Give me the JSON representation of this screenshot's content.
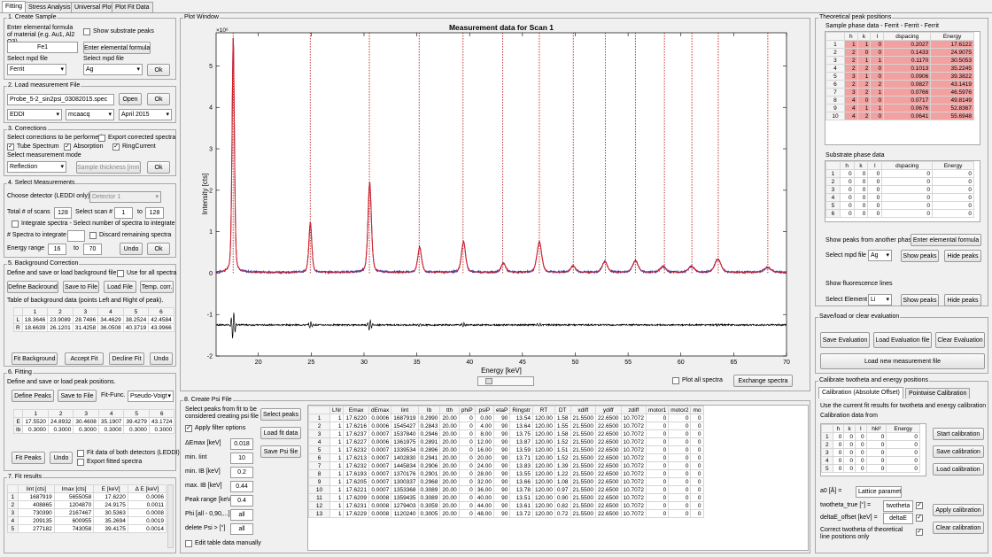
{
  "tabs": [
    "Fitting",
    "Stress Analysis",
    "Universal Plot",
    "Plot Fit Data"
  ],
  "create_sample": {
    "title": "1. Create Sample",
    "desc": "Enter elemental formula of material (e.g. Au1, Al2 O3).",
    "formula": "Fe1",
    "show_substrate": "Show substrate peaks",
    "enter_formula_btn": "Enter elemental formula",
    "mpd_label": "Select mpd file",
    "mpd_label2": "Select mpd file",
    "mpd_value": "Ferrit",
    "mpd_value2": "Ag",
    "ok": "Ok"
  },
  "load_meas": {
    "title": "2. Load measurement File",
    "file": "Probe_5-2_sin2psi_03082015.spec",
    "open": "Open",
    "ok": "Ok",
    "sel1": "EDDI",
    "sel2": "mcaacq",
    "sel3": "April 2015"
  },
  "corrections": {
    "title": "3. Corrections",
    "desc": "Select corrections to be performed",
    "export": "Export corrected spectra",
    "tube": "Tube Spectrum",
    "absorption": "Absorption",
    "ring": "RingCurrent",
    "mode_label": "Select measurement mode",
    "mode": "Reflection",
    "thickness": "Sample thickness [mm]",
    "ok": "Ok"
  },
  "select_meas": {
    "title": "4. Select Measurements",
    "detector_label": "Choose detector (LEDDI only)",
    "detector": "Detector 1",
    "total_label": "Total # of scans",
    "total": "128",
    "scan_label": "Select scan #",
    "scan_from": "1",
    "to": "to",
    "scan_to": "128",
    "integrate": "Integrate spectra - Select number of spectra to integrate",
    "n_label": "# Spectra to integrate",
    "discard": "Discard remaining spectra",
    "energy_label": "Energy range",
    "e_from": "16",
    "e_to_lbl": "to",
    "e_to": "70",
    "undo": "Undo",
    "ok": "Ok"
  },
  "background": {
    "title": "5. Background Correction",
    "desc": "Define and save or load background file.",
    "use_all": "Use for all spectra",
    "define": "Define Backround",
    "save": "Save to File",
    "load": "Load File",
    "temp": "Temp. corr.",
    "table_label": "Table of background data (points Left and Right of peak).",
    "cols": [
      "1",
      "2",
      "3",
      "4",
      "5",
      "6"
    ],
    "rows": [
      {
        "h": "L",
        "v": [
          "18.3646",
          "23.9089",
          "28.7486",
          "34.4629",
          "38.2524",
          "42.4584"
        ]
      },
      {
        "h": "R",
        "v": [
          "18.6639",
          "26.1201",
          "31.4258",
          "36.0508",
          "40.3719",
          "43.9966"
        ]
      }
    ],
    "fit": "Fit Background",
    "accept": "Accept Fit",
    "decline": "Decline Fit",
    "undo": "Undo"
  },
  "fitting": {
    "title": "6. Fitting",
    "desc": "Define and save or load peak positions.",
    "define": "Define Peaks",
    "save": "Save to File",
    "func_label": "Fit-Func.",
    "func": "Pseudo-Voigt",
    "cols": [
      "1",
      "2",
      "3",
      "4",
      "5",
      "6"
    ],
    "rows": [
      {
        "h": "E",
        "v": [
          "17.5520",
          "24.8932",
          "30.4608",
          "35.1907",
          "39.4279",
          "43.1724"
        ]
      },
      {
        "h": "Ib",
        "v": [
          "0.3000",
          "0.3000",
          "0.3000",
          "0.3000",
          "0.3000",
          "0.3000"
        ]
      }
    ],
    "fit": "Fit Peaks",
    "undo": "Undo",
    "both": "Fit data of both detectors (LEDDI)",
    "export": "Export fitted spectra"
  },
  "fit_results": {
    "title": "7. Fit results",
    "cols": [
      "Iint [cts]",
      "Imax [cts]",
      "E [keV]",
      "Δ E [keV]"
    ],
    "rows": [
      [
        "1687919",
        "5655058",
        "17.6220",
        "0.0006"
      ],
      [
        "408865",
        "1204870",
        "24.9175",
        "0.0011"
      ],
      [
        "730390",
        "2167467",
        "30.5363",
        "0.0008"
      ],
      [
        "209135",
        "600955",
        "35.2694",
        "0.0019"
      ],
      [
        "277182",
        "743058",
        "39.4175",
        "0.0014"
      ]
    ]
  },
  "plot": {
    "title": "Plot Window",
    "chart_title": "Measurement data for Scan 1",
    "xlabel": "Energy [keV]",
    "ylabel": "Intensity [cts]",
    "exp": "×10⁶",
    "plot_all": "Plot all spectra",
    "exchange": "Exchange spectra"
  },
  "chart_data": {
    "type": "line",
    "title": "Measurement data for Scan 1",
    "xlabel": "Energy [keV]",
    "ylabel": "Intensity [cts]",
    "xlim": [
      16,
      70
    ],
    "ylim": [
      -2000000,
      5800000
    ],
    "x_ticks": [
      20,
      25,
      30,
      35,
      40,
      45,
      50,
      55,
      60,
      65,
      70
    ],
    "y_ticks": [
      -2,
      -1,
      0,
      1,
      2,
      3,
      4,
      5
    ],
    "peaks": [
      {
        "x": 17.62,
        "y": 5650000
      },
      {
        "x": 24.92,
        "y": 1200000
      },
      {
        "x": 30.54,
        "y": 2170000
      },
      {
        "x": 35.27,
        "y": 600000
      },
      {
        "x": 39.42,
        "y": 740000
      },
      {
        "x": 43.2,
        "y": 220000
      },
      {
        "x": 46.6,
        "y": 740000
      },
      {
        "x": 49.8,
        "y": 150000
      },
      {
        "x": 52.8,
        "y": 260000
      },
      {
        "x": 55.7,
        "y": 280000
      },
      {
        "x": 58.3,
        "y": 140000
      },
      {
        "x": 61.0,
        "y": 140000
      },
      {
        "x": 63.5,
        "y": 320000
      },
      {
        "x": 68.2,
        "y": 120000
      }
    ],
    "theoretical_lines": [
      17.61,
      24.91,
      30.51,
      35.22,
      39.38,
      43.14,
      46.6,
      49.81,
      52.84,
      55.69,
      58.44,
      61.04,
      63.54,
      68.23
    ],
    "residual_offset": -1250000
  },
  "psi": {
    "title": "8. Create Psi File",
    "desc": "Select peaks from fit to be considered creating psi file",
    "select": "Select peaks",
    "apply": "Apply filter options",
    "load": "Load fit data",
    "save": "Save Psi file",
    "filters": [
      {
        "l": "ΔEmax [keV]",
        "v": "0.018"
      },
      {
        "l": "min. Iint",
        "v": "10"
      },
      {
        "l": "min. IB  [keV]",
        "v": "0.2"
      },
      {
        "l": "max. IB  [keV]",
        "v": "0.44"
      },
      {
        "l": "Peak range [keV]",
        "v": "0.4"
      },
      {
        "l": "Phi [all - 0,90,...]",
        "v": "all"
      },
      {
        "l": "delete Psi > [°]",
        "v": "all"
      }
    ],
    "edit": "Edit table data manually",
    "cols": [
      "LNr",
      "Emax",
      "dEmax",
      "Iint",
      "Ib",
      "tth",
      "phiP",
      "psiP",
      "etaP",
      "Ringstr",
      "RT",
      "DT",
      "xdiff",
      "ydiff",
      "zdiff",
      "motor1",
      "motor2",
      "mo"
    ],
    "rows": [
      [
        "1",
        "17.6220",
        "0.0006",
        "1687919",
        "0.2990",
        "20.00",
        "0",
        "0.00",
        "90",
        "13.54",
        "120.00",
        "1.58",
        "21.5500",
        "22.6500",
        "10.7072",
        "0",
        "0",
        "0"
      ],
      [
        "1",
        "17.6216",
        "0.0006",
        "1545427",
        "0.2843",
        "20.00",
        "0",
        "4.00",
        "90",
        "13.64",
        "120.00",
        "1.55",
        "21.5500",
        "22.6500",
        "10.7072",
        "0",
        "0",
        "0"
      ],
      [
        "1",
        "17.6237",
        "0.0007",
        "1537840",
        "0.2946",
        "20.00",
        "0",
        "8.00",
        "90",
        "13.75",
        "120.00",
        "1.58",
        "21.5500",
        "22.6500",
        "10.7072",
        "0",
        "0",
        "0"
      ],
      [
        "1",
        "17.6227",
        "0.0006",
        "1361975",
        "0.2891",
        "20.00",
        "0",
        "12.00",
        "90",
        "13.87",
        "120.00",
        "1.52",
        "21.5500",
        "22.6500",
        "10.7072",
        "0",
        "0",
        "0"
      ],
      [
        "1",
        "17.6232",
        "0.0007",
        "1339534",
        "0.2896",
        "20.00",
        "0",
        "16.00",
        "90",
        "13.59",
        "120.00",
        "1.51",
        "21.5500",
        "22.6500",
        "10.7072",
        "0",
        "0",
        "0"
      ],
      [
        "1",
        "17.6213",
        "0.0007",
        "1402830",
        "0.2941",
        "20.00",
        "0",
        "20.00",
        "90",
        "13.71",
        "120.00",
        "1.52",
        "21.5500",
        "22.6500",
        "10.7072",
        "0",
        "0",
        "0"
      ],
      [
        "1",
        "17.6232",
        "0.0007",
        "1445834",
        "0.2906",
        "20.00",
        "0",
        "24.00",
        "90",
        "13.83",
        "120.00",
        "1.39",
        "21.5500",
        "22.6500",
        "10.7072",
        "0",
        "0",
        "0"
      ],
      [
        "1",
        "17.6193",
        "0.0007",
        "1370176",
        "0.2901",
        "20.00",
        "0",
        "28.00",
        "90",
        "13.55",
        "120.00",
        "1.22",
        "21.5500",
        "22.6500",
        "10.7072",
        "0",
        "0",
        "0"
      ],
      [
        "1",
        "17.6205",
        "0.0007",
        "1300337",
        "0.2968",
        "20.00",
        "0",
        "32.00",
        "90",
        "13.66",
        "120.00",
        "1.08",
        "21.5500",
        "22.6500",
        "10.7072",
        "0",
        "0",
        "0"
      ],
      [
        "1",
        "17.6221",
        "0.0007",
        "1353368",
        "0.3089",
        "20.00",
        "0",
        "36.00",
        "90",
        "13.78",
        "120.00",
        "0.97",
        "21.5500",
        "22.6500",
        "10.7072",
        "0",
        "0",
        "0"
      ],
      [
        "1",
        "17.6209",
        "0.0008",
        "1359435",
        "0.3089",
        "20.00",
        "0",
        "40.00",
        "90",
        "13.51",
        "120.00",
        "0.90",
        "21.5500",
        "22.6500",
        "10.7072",
        "0",
        "0",
        "0"
      ],
      [
        "1",
        "17.6231",
        "0.0008",
        "1279403",
        "0.3059",
        "20.00",
        "0",
        "44.00",
        "90",
        "13.61",
        "120.00",
        "0.82",
        "21.5500",
        "22.6500",
        "10.7072",
        "0",
        "0",
        "0"
      ],
      [
        "1",
        "17.6229",
        "0.0008",
        "1120240",
        "0.3005",
        "20.00",
        "0",
        "48.00",
        "90",
        "13.72",
        "120.00",
        "0.72",
        "21.5500",
        "22.6500",
        "10.7072",
        "0",
        "0",
        "0"
      ]
    ]
  },
  "theo": {
    "title": "Theoretical peak positions",
    "sample_label": "Sample phase data - Ferrit - Ferrit - Ferrit",
    "cols": [
      "h",
      "k",
      "l",
      "dspacing",
      "Energy"
    ],
    "rows": [
      [
        "1",
        "1",
        "0",
        "0.2027",
        "17.6122"
      ],
      [
        "2",
        "0",
        "0",
        "0.1433",
        "24.9075"
      ],
      [
        "2",
        "1",
        "1",
        "0.1170",
        "30.5053"
      ],
      [
        "2",
        "2",
        "0",
        "0.1013",
        "35.2245"
      ],
      [
        "3",
        "1",
        "0",
        "0.0906",
        "39.3822"
      ],
      [
        "2",
        "2",
        "2",
        "0.0827",
        "43.1419"
      ],
      [
        "3",
        "2",
        "1",
        "0.0766",
        "46.5976"
      ],
      [
        "4",
        "0",
        "0",
        "0.0717",
        "49.8149"
      ],
      [
        "4",
        "1",
        "1",
        "0.0676",
        "52.8367"
      ],
      [
        "4",
        "2",
        "0",
        "0.0641",
        "55.6948"
      ]
    ],
    "sub_label": "Substrate phase data",
    "sub_rows": [
      [
        "0",
        "0",
        "0",
        "0",
        "0"
      ],
      [
        "0",
        "0",
        "0",
        "0",
        "0"
      ],
      [
        "0",
        "0",
        "0",
        "0",
        "0"
      ],
      [
        "0",
        "0",
        "0",
        "0",
        "0"
      ],
      [
        "0",
        "0",
        "0",
        "0",
        "0"
      ],
      [
        "0",
        "0",
        "0",
        "0",
        "0"
      ]
    ],
    "another": "Show peaks from another phase",
    "enter": "Enter elemental formula",
    "mpd_label": "Select mpd file",
    "mpd": "Ag",
    "show": "Show peaks",
    "hide": "Hide peaks",
    "fluor": "Show fluorescence lines",
    "elem_label": "Select Element",
    "elem": "Li",
    "show2": "Show peaks",
    "hide2": "Hide peaks"
  },
  "saveload": {
    "title": "Save/load or clear evaluation",
    "save": "Save Evaluation",
    "load": "Load Evaluation file",
    "clear": "Clear Evaluation",
    "new": "Load new measurement file"
  },
  "calib": {
    "title": "Calibrate twotheta and energy positions",
    "tab1": "Calibration (Absolute Offset)",
    "tab2": "Pointwise Calibration",
    "desc": "Use the current fit results for twotheta and energy calibration",
    "from": "Calibration data from",
    "cols": [
      "h",
      "k",
      "l",
      "hkl²",
      "Energy"
    ],
    "rows": [
      [
        "0",
        "0",
        "0",
        "0",
        "0"
      ],
      [
        "0",
        "0",
        "0",
        "0",
        "0"
      ],
      [
        "0",
        "0",
        "0",
        "0",
        "0"
      ],
      [
        "0",
        "0",
        "0",
        "0",
        "0"
      ],
      [
        "0",
        "0",
        "0",
        "0",
        "0"
      ]
    ],
    "start": "Start calibration",
    "save": "Save calibration",
    "load": "Load calibration",
    "a0_label": "a0 [Å] =",
    "a0": "Lattice parameter",
    "tt_label": "twotheta_true [°] =",
    "tt": "twotheta",
    "de_label": "deltaE_offset [keV] =",
    "de": "deltaE",
    "apply": "Apply calibration",
    "correct": "Correct twotheta of theoretical line positions only",
    "clear": "Clear calibration"
  }
}
